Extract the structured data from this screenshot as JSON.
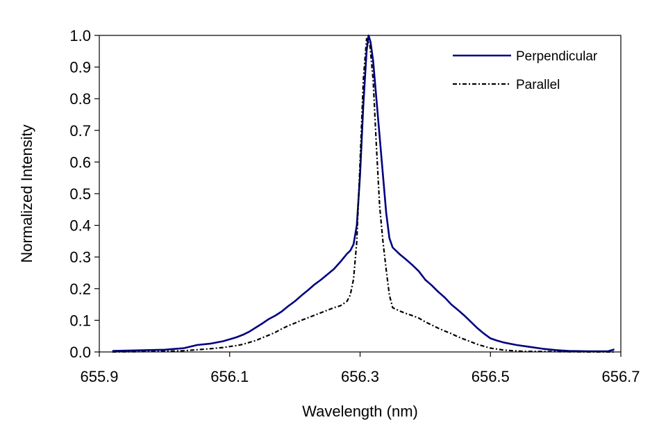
{
  "chart_data": {
    "type": "line",
    "title": "",
    "xlabel": "Wavelength (nm)",
    "ylabel": "Normalized Intensity",
    "xlim": [
      655.9,
      656.7
    ],
    "ylim": [
      0.0,
      1.0
    ],
    "x_ticks": [
      "655.9",
      "656.1",
      "656.3",
      "656.5",
      "656.7"
    ],
    "y_ticks": [
      "0.0",
      "0.1",
      "0.2",
      "0.3",
      "0.4",
      "0.5",
      "0.6",
      "0.7",
      "0.8",
      "0.9",
      "1.0"
    ],
    "grid": false,
    "legend_position": "top-right",
    "series": [
      {
        "name": "Perpendicular",
        "color": "#000080",
        "dash": "solid",
        "x": [
          655.92,
          655.96,
          656.0,
          656.03,
          656.05,
          656.07,
          656.09,
          656.1,
          656.11,
          656.12,
          656.13,
          656.14,
          656.15,
          656.16,
          656.17,
          656.18,
          656.19,
          656.2,
          656.21,
          656.22,
          656.23,
          656.24,
          656.25,
          656.26,
          656.27,
          656.28,
          656.285,
          656.29,
          656.295,
          656.3,
          656.305,
          656.31,
          656.313,
          656.316,
          656.32,
          656.325,
          656.33,
          656.335,
          656.34,
          656.345,
          656.35,
          656.36,
          656.37,
          656.38,
          656.39,
          656.4,
          656.41,
          656.42,
          656.43,
          656.44,
          656.45,
          656.46,
          656.47,
          656.48,
          656.49,
          656.5,
          656.51,
          656.52,
          656.54,
          656.56,
          656.58,
          656.6,
          656.62,
          656.65,
          656.68,
          656.69
        ],
        "y": [
          0.003,
          0.005,
          0.007,
          0.012,
          0.022,
          0.026,
          0.034,
          0.04,
          0.046,
          0.054,
          0.064,
          0.077,
          0.09,
          0.104,
          0.115,
          0.128,
          0.145,
          0.16,
          0.178,
          0.195,
          0.213,
          0.228,
          0.245,
          0.262,
          0.285,
          0.31,
          0.32,
          0.34,
          0.4,
          0.56,
          0.78,
          0.95,
          1.0,
          0.98,
          0.92,
          0.8,
          0.68,
          0.56,
          0.44,
          0.36,
          0.33,
          0.31,
          0.293,
          0.275,
          0.255,
          0.228,
          0.21,
          0.19,
          0.172,
          0.15,
          0.133,
          0.115,
          0.095,
          0.075,
          0.058,
          0.043,
          0.036,
          0.03,
          0.022,
          0.016,
          0.01,
          0.006,
          0.003,
          0.002,
          0.002,
          0.008
        ]
      },
      {
        "name": "Parallel",
        "color": "#000000",
        "dash": "dash-dot",
        "x": [
          655.92,
          656.0,
          656.03,
          656.05,
          656.07,
          656.09,
          656.1,
          656.11,
          656.12,
          656.13,
          656.14,
          656.15,
          656.16,
          656.17,
          656.18,
          656.19,
          656.2,
          656.21,
          656.22,
          656.23,
          656.24,
          656.25,
          656.26,
          656.27,
          656.28,
          656.285,
          656.29,
          656.295,
          656.3,
          656.305,
          656.31,
          656.315,
          656.32,
          656.325,
          656.33,
          656.335,
          656.34,
          656.345,
          656.35,
          656.36,
          656.37,
          656.38,
          656.39,
          656.4,
          656.41,
          656.42,
          656.43,
          656.44,
          656.45,
          656.46,
          656.47,
          656.48,
          656.49,
          656.5,
          656.52,
          656.55,
          656.6,
          656.65,
          656.69
        ],
        "y": [
          0.0,
          0.002,
          0.004,
          0.007,
          0.01,
          0.014,
          0.017,
          0.02,
          0.024,
          0.03,
          0.036,
          0.045,
          0.053,
          0.062,
          0.073,
          0.083,
          0.091,
          0.1,
          0.108,
          0.116,
          0.124,
          0.132,
          0.14,
          0.146,
          0.16,
          0.18,
          0.23,
          0.35,
          0.6,
          0.86,
          0.99,
          0.97,
          0.86,
          0.65,
          0.46,
          0.35,
          0.26,
          0.18,
          0.14,
          0.13,
          0.122,
          0.115,
          0.107,
          0.095,
          0.085,
          0.075,
          0.066,
          0.058,
          0.048,
          0.04,
          0.032,
          0.024,
          0.018,
          0.012,
          0.006,
          0.002,
          0.001,
          0.0,
          0.0
        ]
      }
    ]
  }
}
